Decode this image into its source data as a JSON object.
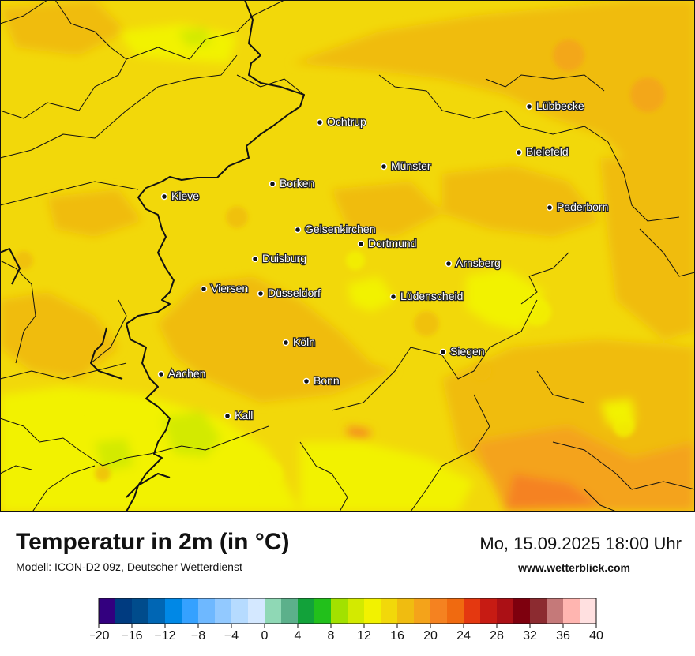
{
  "title": "Temperatur in 2m (in °C)",
  "model": "Modell: ICON-D2 09z, Deutscher Wetterdienst",
  "datetime": "Mo, 15.09.2025 18:00 Uhr",
  "site": "www.wetterblick.com",
  "colors": {
    "base": "#f2d80a",
    "warm": "#f0bc10",
    "warmer": "#f4a31a",
    "hot": "#f58220",
    "cool": "#f2f200",
    "cooler": "#d3ea00",
    "border": "#111111"
  },
  "cities": [
    {
      "name": "Lübbecke"
    },
    {
      "name": "Ochtrup"
    },
    {
      "name": "Bielefeld"
    },
    {
      "name": "Münster"
    },
    {
      "name": "Borken"
    },
    {
      "name": "Kleve"
    },
    {
      "name": "Paderborn"
    },
    {
      "name": "Gelsenkirchen"
    },
    {
      "name": "Dortmund"
    },
    {
      "name": "Duisburg"
    },
    {
      "name": "Arnsberg"
    },
    {
      "name": "Viersen"
    },
    {
      "name": "Düsseldorf"
    },
    {
      "name": "Lüdenscheid"
    },
    {
      "name": "Köln"
    },
    {
      "name": "Siegen"
    },
    {
      "name": "Aachen"
    },
    {
      "name": "Bonn"
    },
    {
      "name": "Kall"
    }
  ],
  "legend": {
    "colors": [
      "#33007f",
      "#003b80",
      "#004c8c",
      "#0066b4",
      "#0088e6",
      "#35a1ff",
      "#6eb8ff",
      "#92c9ff",
      "#b6dbff",
      "#d4e8ff",
      "#8fd8b5",
      "#5cb08b",
      "#12a23a",
      "#22c01b",
      "#a2e100",
      "#d3ea00",
      "#f2f200",
      "#f2d80a",
      "#f0bc10",
      "#f4a31a",
      "#f58220",
      "#f06a10",
      "#e43810",
      "#c71b13",
      "#ab1015",
      "#7e000e",
      "#8c2b30",
      "#c57979",
      "#ffb5b0",
      "#ffe0e0"
    ],
    "ticks": [
      "−20",
      "−16",
      "−12",
      "−8",
      "−4",
      "0",
      "4",
      "8",
      "12",
      "16",
      "20",
      "24",
      "28",
      "32",
      "36",
      "40"
    ]
  }
}
